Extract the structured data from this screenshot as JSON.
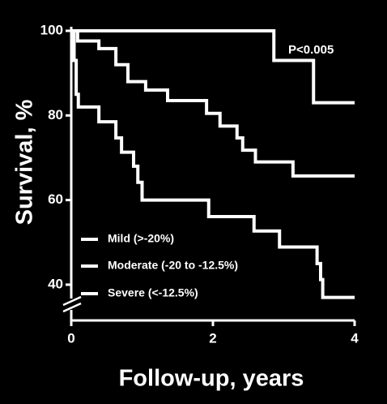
{
  "chart_data": {
    "type": "line",
    "step": "post",
    "xlabel": "Follow-up, years",
    "ylabel": "Survival, %",
    "annotation": "P<0.005",
    "xlim": [
      0,
      4
    ],
    "ylim": [
      35,
      100
    ],
    "xticks": [
      0,
      2,
      4
    ],
    "yticks": [
      40,
      60,
      80,
      100
    ],
    "grid": false,
    "legend": "lower left",
    "series": [
      {
        "name": "Mild (>-20%)",
        "color": "#ffffff",
        "x": [
          0,
          2.86,
          3.42,
          4
        ],
        "values": [
          100,
          93,
          83,
          83
        ]
      },
      {
        "name": "Moderate (-20 to -12.5%)",
        "color": "#ffffff",
        "x": [
          0,
          0.09,
          0.39,
          0.63,
          0.8,
          1.05,
          1.36,
          1.91,
          2.1,
          2.34,
          2.42,
          2.6,
          3.13,
          4
        ],
        "values": [
          100,
          97.6,
          95.8,
          92,
          88,
          86,
          83.5,
          80.5,
          77.5,
          74.7,
          71.8,
          69,
          65.7,
          65.7
        ]
      },
      {
        "name": "Severe (<-12.5%)",
        "color": "#ffffff",
        "x": [
          0,
          0.04,
          0.07,
          0.1,
          0.39,
          0.63,
          0.71,
          0.88,
          0.94,
          1.0,
          1.94,
          2.58,
          2.94,
          3.47,
          3.52,
          3.55,
          4
        ],
        "values": [
          100,
          93,
          85,
          82,
          78.5,
          74.7,
          71.3,
          68,
          64.2,
          60,
          56.1,
          52.7,
          48.9,
          45,
          41.2,
          37,
          37
        ]
      }
    ]
  }
}
